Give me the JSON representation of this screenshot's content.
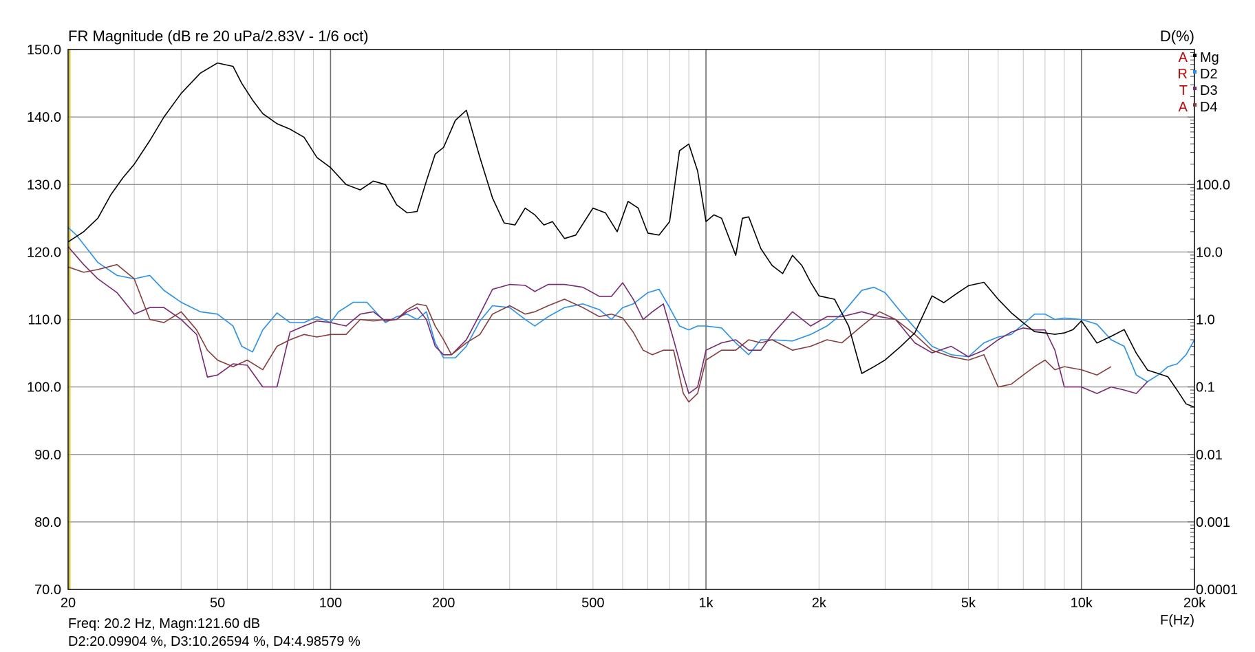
{
  "chart_data": {
    "type": "line",
    "title": "FR Magnitude (dB re 20 uPa/2.83V - 1/6 oct)",
    "ylabel_right": "D(%)",
    "xlabel": "F(Hz)",
    "x_scale": "log",
    "xlim": [
      20,
      20000
    ],
    "ylim": [
      70,
      150
    ],
    "ylim_right": [
      0.0001,
      10000
    ],
    "y_right_scale": "log",
    "grid": true,
    "legend_placement": "top-right",
    "x_ticks": [
      {
        "value": 20,
        "label": "20"
      },
      {
        "value": 50,
        "label": "50"
      },
      {
        "value": 100,
        "label": "100"
      },
      {
        "value": 200,
        "label": "200"
      },
      {
        "value": 500,
        "label": "500"
      },
      {
        "value": 1000,
        "label": "1k"
      },
      {
        "value": 2000,
        "label": "2k"
      },
      {
        "value": 5000,
        "label": "5k"
      },
      {
        "value": 10000,
        "label": "10k"
      },
      {
        "value": 20000,
        "label": "20k"
      }
    ],
    "y_ticks_left": [
      {
        "value": 150,
        "label": "150.0"
      },
      {
        "value": 140,
        "label": "140.0"
      },
      {
        "value": 130,
        "label": "130.0"
      },
      {
        "value": 120,
        "label": "120.0"
      },
      {
        "value": 110,
        "label": "110.0"
      },
      {
        "value": 100,
        "label": "100.0"
      },
      {
        "value": 90,
        "label": "90.0"
      },
      {
        "value": 80,
        "label": "80.0"
      },
      {
        "value": 70,
        "label": "70.0"
      }
    ],
    "y_ticks_right": [
      {
        "value": 100,
        "label": "100.0"
      },
      {
        "value": 10,
        "label": "10.0"
      },
      {
        "value": 1,
        "label": "1.0"
      },
      {
        "value": 0.1,
        "label": "0.1"
      },
      {
        "value": 0.01,
        "label": "0.01"
      },
      {
        "value": 0.001,
        "label": "0.001"
      },
      {
        "value": 0.0001,
        "label": "0.0001"
      }
    ],
    "cursor_x": 20.2,
    "watermark": [
      "A",
      "R",
      "T",
      "A"
    ],
    "series": [
      {
        "name": "Mg",
        "axis": "left",
        "color": "#000000",
        "x": [
          20,
          22,
          24,
          26,
          28,
          30,
          33,
          36,
          40,
          45,
          50,
          55,
          58,
          62,
          66,
          72,
          78,
          85,
          92,
          100,
          110,
          120,
          130,
          140,
          150,
          160,
          170,
          180,
          190,
          200,
          215,
          230,
          250,
          270,
          290,
          310,
          330,
          350,
          370,
          390,
          420,
          450,
          500,
          540,
          580,
          620,
          660,
          700,
          750,
          800,
          850,
          900,
          950,
          1000,
          1050,
          1100,
          1200,
          1250,
          1300,
          1400,
          1500,
          1600,
          1700,
          1800,
          1900,
          2000,
          2200,
          2400,
          2600,
          2800,
          3000,
          3300,
          3600,
          4000,
          4300,
          4700,
          5000,
          5500,
          6000,
          6500,
          7000,
          7500,
          8000,
          8500,
          9000,
          9500,
          10000,
          11000,
          12000,
          13000,
          14000,
          15000,
          16000,
          17000,
          18000,
          19000,
          20000
        ],
        "values": [
          121.5,
          123.0,
          125.0,
          128.5,
          131.0,
          133.0,
          136.5,
          140.0,
          143.5,
          146.5,
          148.0,
          147.5,
          145.0,
          142.5,
          140.5,
          139.0,
          138.2,
          137.0,
          134.0,
          132.5,
          130.0,
          129.2,
          130.5,
          130.0,
          127.0,
          125.8,
          126.0,
          130.5,
          134.5,
          135.5,
          139.5,
          141.0,
          134.0,
          128.0,
          124.3,
          124.0,
          126.5,
          125.5,
          124.0,
          124.5,
          122.0,
          122.5,
          126.5,
          125.8,
          123.0,
          127.5,
          126.5,
          122.8,
          122.5,
          124.5,
          135.0,
          136.0,
          132.0,
          124.5,
          125.5,
          125.0,
          119.5,
          125.0,
          125.2,
          120.5,
          118.0,
          116.8,
          119.5,
          118.0,
          115.5,
          113.5,
          113.0,
          109.0,
          102.0,
          103.0,
          104.0,
          106.0,
          108.0,
          113.5,
          112.5,
          114.0,
          115.0,
          115.5,
          113.0,
          111.0,
          109.5,
          108.2,
          108.0,
          107.8,
          108.0,
          108.5,
          109.8,
          106.5,
          107.5,
          108.5,
          105.0,
          102.5,
          102.0,
          101.5,
          99.5,
          97.5,
          97.0
        ]
      },
      {
        "name": "D2",
        "axis": "right",
        "color": "#1e90ff",
        "x": [
          20,
          21,
          24,
          27,
          30,
          33,
          36,
          40,
          45,
          50,
          55,
          58,
          62,
          66,
          72,
          78,
          85,
          92,
          100,
          105,
          115,
          125,
          140,
          150,
          160,
          170,
          180,
          190,
          200,
          215,
          230,
          250,
          270,
          300,
          330,
          350,
          380,
          420,
          470,
          520,
          560,
          600,
          640,
          700,
          750,
          800,
          850,
          900,
          950,
          1000,
          1100,
          1200,
          1300,
          1400,
          1500,
          1700,
          1900,
          2100,
          2300,
          2600,
          2800,
          3000,
          3300,
          3600,
          4000,
          4500,
          5000,
          5500,
          6000,
          6500,
          7000,
          7500,
          8000,
          8500,
          9000,
          10000,
          11000,
          12000,
          13000,
          14000,
          15000,
          16000,
          17000,
          18000,
          19000,
          20000
        ],
        "values": [
          23.0,
          18.0,
          7.0,
          4.5,
          4.0,
          4.5,
          2.7,
          1.8,
          1.3,
          1.2,
          0.8,
          0.4,
          0.33,
          0.7,
          1.25,
          0.9,
          0.9,
          1.1,
          0.9,
          1.3,
          1.8,
          1.8,
          0.9,
          1.1,
          1.2,
          1.0,
          1.3,
          0.45,
          0.27,
          0.27,
          0.4,
          0.95,
          1.6,
          1.5,
          1.0,
          0.8,
          1.1,
          1.5,
          1.7,
          1.4,
          1.0,
          1.5,
          1.7,
          2.5,
          2.8,
          1.5,
          0.8,
          0.7,
          0.8,
          0.8,
          0.75,
          0.45,
          0.3,
          0.5,
          0.5,
          0.48,
          0.6,
          0.8,
          1.2,
          2.7,
          3.0,
          2.5,
          1.3,
          0.75,
          0.4,
          0.3,
          0.28,
          0.45,
          0.55,
          0.6,
          0.85,
          1.2,
          1.2,
          1.0,
          1.05,
          1.0,
          0.85,
          0.5,
          0.4,
          0.15,
          0.12,
          0.15,
          0.2,
          0.22,
          0.3,
          0.5
        ]
      },
      {
        "name": "D3",
        "axis": "right",
        "color": "#7b2574",
        "x": [
          20,
          22,
          24,
          27,
          30,
          33,
          36,
          40,
          44,
          47,
          50,
          55,
          60,
          66,
          72,
          78,
          85,
          92,
          100,
          110,
          120,
          130,
          140,
          150,
          160,
          170,
          180,
          190,
          200,
          210,
          230,
          250,
          270,
          300,
          330,
          350,
          380,
          420,
          470,
          520,
          560,
          600,
          640,
          680,
          720,
          770,
          820,
          870,
          900,
          950,
          1000,
          1100,
          1200,
          1300,
          1400,
          1500,
          1700,
          1900,
          2100,
          2300,
          2600,
          2900,
          3200,
          3600,
          4000,
          4500,
          5000,
          5500,
          6000,
          6500,
          7000,
          7500,
          8000,
          8500,
          9000,
          10000,
          11000,
          12000,
          13000,
          14000,
          15000
        ],
        "values": [
          12.0,
          6.5,
          4.0,
          2.5,
          1.2,
          1.5,
          1.5,
          1.0,
          0.6,
          0.14,
          0.15,
          0.22,
          0.21,
          0.1,
          0.1,
          0.65,
          0.8,
          0.95,
          0.9,
          0.8,
          1.2,
          1.3,
          0.95,
          1.0,
          1.3,
          1.5,
          1.0,
          0.4,
          0.3,
          0.3,
          0.5,
          1.2,
          2.8,
          3.3,
          3.2,
          2.6,
          3.3,
          3.3,
          3.0,
          2.2,
          2.2,
          3.5,
          2.0,
          1.0,
          1.3,
          1.7,
          0.5,
          0.15,
          0.08,
          0.1,
          0.35,
          0.45,
          0.5,
          0.35,
          0.35,
          0.6,
          1.3,
          0.8,
          1.1,
          1.1,
          1.3,
          1.1,
          1.0,
          0.45,
          0.32,
          0.4,
          0.28,
          0.35,
          0.5,
          0.65,
          0.75,
          0.7,
          0.7,
          0.35,
          0.1,
          0.1,
          0.08,
          0.1,
          0.09,
          0.08,
          0.12
        ]
      },
      {
        "name": "D4",
        "axis": "right",
        "color": "#8b3a3a",
        "x": [
          20,
          22,
          24,
          27,
          30,
          33,
          36,
          40,
          44,
          47,
          50,
          55,
          60,
          66,
          72,
          78,
          85,
          92,
          100,
          110,
          120,
          130,
          140,
          150,
          160,
          170,
          180,
          190,
          200,
          210,
          230,
          250,
          270,
          300,
          330,
          350,
          380,
          420,
          470,
          520,
          560,
          600,
          640,
          680,
          720,
          770,
          820,
          870,
          900,
          950,
          1000,
          1100,
          1200,
          1300,
          1400,
          1500,
          1700,
          1900,
          2100,
          2300,
          2600,
          2900,
          3200,
          3600,
          4000,
          4500,
          5000,
          5500,
          6000,
          6500,
          7000,
          7500,
          8000,
          8500,
          9000,
          10000,
          11000,
          12000
        ],
        "values": [
          6.0,
          5.0,
          5.5,
          6.5,
          4.0,
          1.0,
          0.9,
          1.3,
          0.7,
          0.35,
          0.25,
          0.2,
          0.25,
          0.18,
          0.4,
          0.5,
          0.6,
          0.55,
          0.6,
          0.6,
          1.0,
          0.95,
          1.0,
          1.0,
          1.4,
          1.7,
          1.6,
          0.8,
          0.5,
          0.3,
          0.45,
          0.6,
          1.2,
          1.6,
          1.2,
          1.3,
          1.6,
          2.0,
          1.5,
          1.1,
          1.2,
          1.05,
          0.65,
          0.35,
          0.3,
          0.35,
          0.35,
          0.08,
          0.06,
          0.08,
          0.25,
          0.35,
          0.35,
          0.5,
          0.45,
          0.5,
          0.35,
          0.4,
          0.5,
          0.45,
          0.8,
          1.3,
          1.0,
          0.6,
          0.35,
          0.28,
          0.25,
          0.3,
          0.1,
          0.11,
          0.15,
          0.2,
          0.25,
          0.18,
          0.2,
          0.18,
          0.15,
          0.2
        ]
      }
    ]
  },
  "readout": {
    "line1": "Freq: 20.2 Hz, Magn:121.60 dB",
    "line2": "D2:20.09904 %, D3:10.26594 %, D4:4.98579 %"
  }
}
